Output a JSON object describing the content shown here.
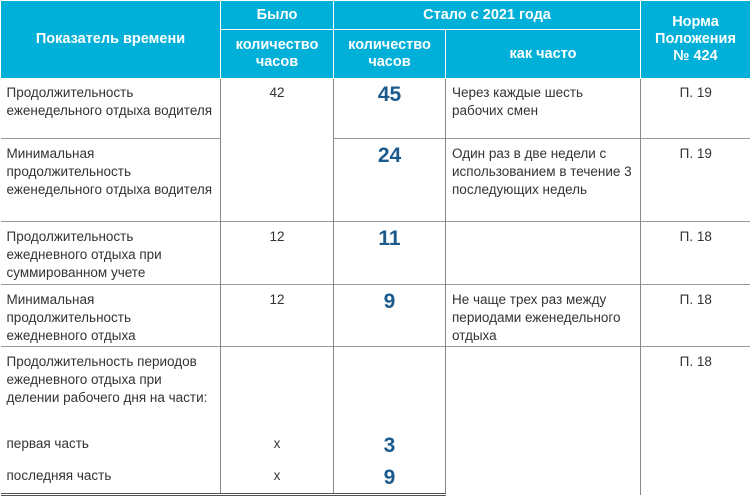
{
  "header": {
    "indicator": "Показатель времени",
    "was": "Было",
    "became": "Стало с 2021 года",
    "norm": "Норма Положения № 424",
    "hours": "количество часов",
    "hours_new": "количество часов",
    "how_often": "как часто"
  },
  "rows": [
    {
      "name": "Продолжительность еженедельного отдыха водителя",
      "was": "42",
      "new": "45",
      "often": "Через каждые шесть рабочих смен",
      "norm": "П. 19"
    },
    {
      "name": "Минимальная продолжительность еженедельного отдыха водителя",
      "new": "24",
      "often": "Один раз в две недели с использованием в течение 3 последующих недель",
      "norm": "П. 19"
    },
    {
      "name": "Продолжительность ежедневного отдыха при суммированном учете",
      "was": "12",
      "new": "11",
      "often": "",
      "norm": "П. 18"
    },
    {
      "name": "Минимальная продолжительность ежедневного отдыха",
      "was": "12",
      "new": "9",
      "often": "Не чаще трех раз между периодами еженедельного отдыха",
      "norm": "П. 18"
    },
    {
      "name": "Продолжительность периодов ежедневного отдыха при делении рабочего дня на части:",
      "norm": "П. 18",
      "parts": [
        {
          "name": "первая часть",
          "was": "x",
          "new": "3"
        },
        {
          "name": "последняя часть",
          "was": "x",
          "new": "9"
        }
      ]
    }
  ],
  "colors": {
    "header": "#00b0d8",
    "accent_number": "#1b5a8c"
  }
}
